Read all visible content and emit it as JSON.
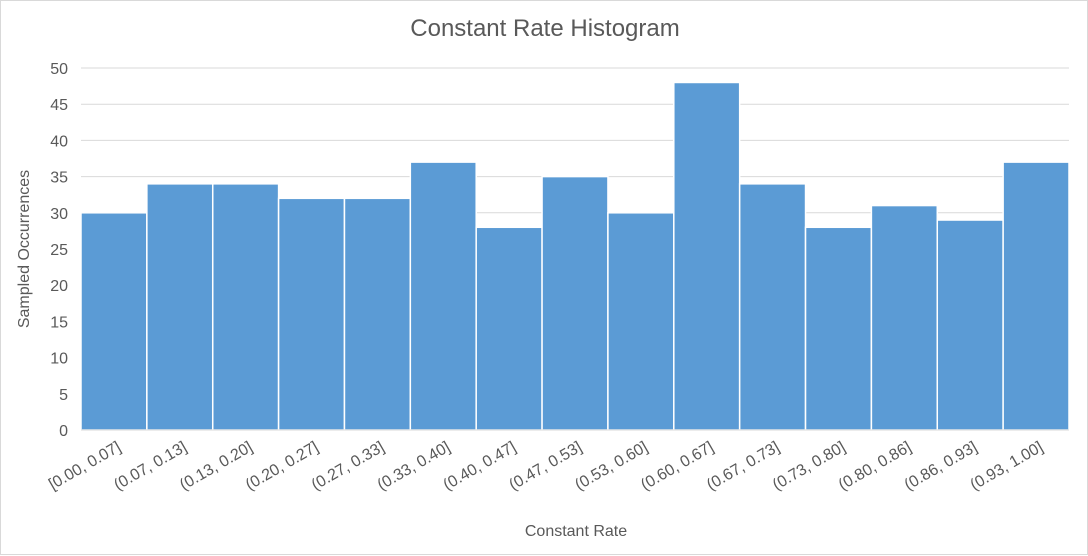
{
  "chart_data": {
    "type": "bar",
    "title": "Constant Rate Histogram",
    "xlabel": "Constant Rate",
    "ylabel": "Sampled Occurrences",
    "categories": [
      "[0.00, 0.07]",
      "(0.07, 0.13]",
      "(0.13, 0.20]",
      "(0.20, 0.27]",
      "(0.27, 0.33]",
      "(0.33, 0.40]",
      "(0.40, 0.47]",
      "(0.47, 0.53]",
      "(0.53, 0.60]",
      "(0.60, 0.67]",
      "(0.67, 0.73]",
      "(0.73, 0.80]",
      "(0.80, 0.86]",
      "(0.86, 0.93]",
      "(0.93, 1.00]"
    ],
    "values": [
      30,
      34,
      34,
      32,
      32,
      37,
      28,
      35,
      30,
      48,
      34,
      28,
      31,
      29,
      37
    ],
    "ylim": [
      0,
      50
    ],
    "yticks": [
      0,
      5,
      10,
      15,
      20,
      25,
      30,
      35,
      40,
      45,
      50
    ],
    "grid": true,
    "colors": {
      "bar": "#5b9bd5",
      "grid": "#d9d9d9",
      "text": "#595959"
    }
  }
}
